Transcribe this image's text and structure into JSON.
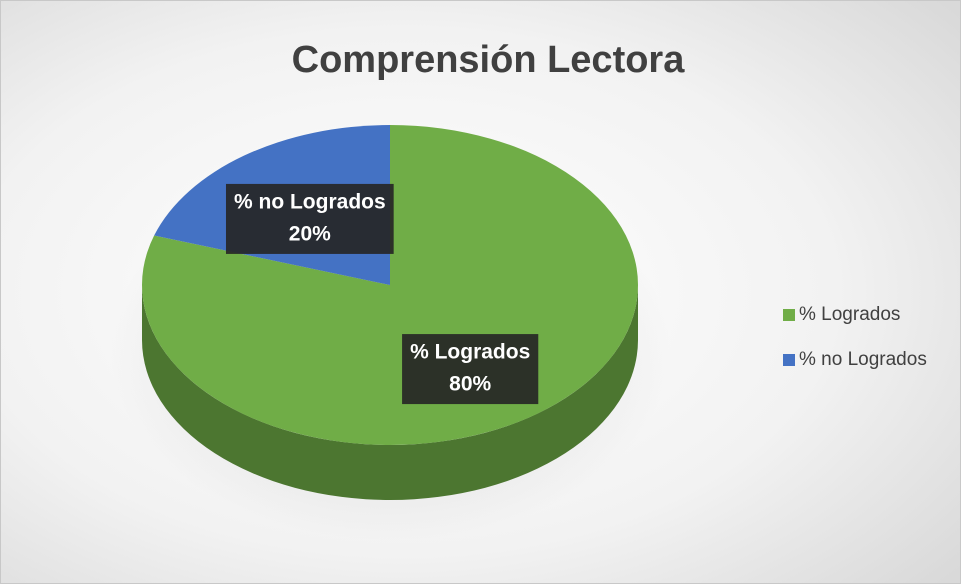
{
  "chart_data": {
    "type": "pie",
    "title": "Comprensión Lectora",
    "categories": [
      "% Logrados",
      "% no Logrados"
    ],
    "values": [
      80,
      20
    ],
    "value_labels": [
      "80%",
      "20%"
    ],
    "colors": [
      "#70ad47",
      "#4472c4"
    ],
    "legend": "right"
  }
}
